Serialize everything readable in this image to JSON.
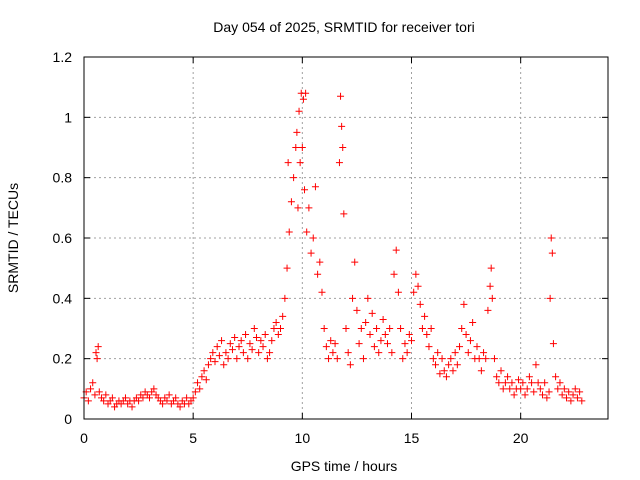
{
  "chart_data": {
    "type": "scatter",
    "title": "Day 054 of 2025, SRMTID for receiver tori",
    "xlabel": "GPS time / hours",
    "ylabel": "SRMTID / TECUs",
    "xlim": [
      0,
      24
    ],
    "ylim": [
      0,
      1.2
    ],
    "xticks": [
      0,
      5,
      10,
      15,
      20
    ],
    "xtick_labels": [
      "0",
      "5",
      "10",
      "15",
      "20"
    ],
    "yticks": [
      0,
      0.2,
      0.4,
      0.6,
      0.8,
      1.0,
      1.2
    ],
    "ytick_labels": [
      "0",
      "0.2",
      "0.4",
      "0.6",
      "0.8",
      "1",
      "1.2"
    ],
    "grid": true,
    "marker": "+",
    "series": [
      {
        "name": "SRMTID",
        "color": "#ff0000",
        "points": [
          [
            0.0,
            0.07
          ],
          [
            0.1,
            0.09
          ],
          [
            0.2,
            0.06
          ],
          [
            0.3,
            0.1
          ],
          [
            0.4,
            0.12
          ],
          [
            0.5,
            0.08
          ],
          [
            0.55,
            0.22
          ],
          [
            0.6,
            0.2
          ],
          [
            0.65,
            0.24
          ],
          [
            0.7,
            0.09
          ],
          [
            0.8,
            0.07
          ],
          [
            0.9,
            0.06
          ],
          [
            1.0,
            0.08
          ],
          [
            1.1,
            0.05
          ],
          [
            1.2,
            0.06
          ],
          [
            1.3,
            0.07
          ],
          [
            1.4,
            0.04
          ],
          [
            1.5,
            0.05
          ],
          [
            1.6,
            0.06
          ],
          [
            1.7,
            0.05
          ],
          [
            1.8,
            0.06
          ],
          [
            1.9,
            0.07
          ],
          [
            2.0,
            0.05
          ],
          [
            2.1,
            0.06
          ],
          [
            2.2,
            0.04
          ],
          [
            2.3,
            0.06
          ],
          [
            2.4,
            0.07
          ],
          [
            2.5,
            0.06
          ],
          [
            2.6,
            0.08
          ],
          [
            2.7,
            0.07
          ],
          [
            2.8,
            0.09
          ],
          [
            2.9,
            0.08
          ],
          [
            3.0,
            0.07
          ],
          [
            3.1,
            0.09
          ],
          [
            3.2,
            0.1
          ],
          [
            3.3,
            0.08
          ],
          [
            3.4,
            0.07
          ],
          [
            3.5,
            0.06
          ],
          [
            3.6,
            0.05
          ],
          [
            3.7,
            0.07
          ],
          [
            3.8,
            0.06
          ],
          [
            3.9,
            0.08
          ],
          [
            4.0,
            0.05
          ],
          [
            4.1,
            0.06
          ],
          [
            4.2,
            0.07
          ],
          [
            4.3,
            0.05
          ],
          [
            4.4,
            0.04
          ],
          [
            4.5,
            0.06
          ],
          [
            4.6,
            0.05
          ],
          [
            4.7,
            0.07
          ],
          [
            4.8,
            0.05
          ],
          [
            4.9,
            0.06
          ],
          [
            5.0,
            0.07
          ],
          [
            5.1,
            0.09
          ],
          [
            5.2,
            0.12
          ],
          [
            5.3,
            0.1
          ],
          [
            5.4,
            0.14
          ],
          [
            5.5,
            0.16
          ],
          [
            5.6,
            0.13
          ],
          [
            5.7,
            0.18
          ],
          [
            5.8,
            0.2
          ],
          [
            5.9,
            0.22
          ],
          [
            6.0,
            0.19
          ],
          [
            6.1,
            0.24
          ],
          [
            6.2,
            0.21
          ],
          [
            6.3,
            0.26
          ],
          [
            6.4,
            0.18
          ],
          [
            6.5,
            0.22
          ],
          [
            6.6,
            0.2
          ],
          [
            6.7,
            0.25
          ],
          [
            6.8,
            0.23
          ],
          [
            6.9,
            0.27
          ],
          [
            7.0,
            0.2
          ],
          [
            7.1,
            0.24
          ],
          [
            7.2,
            0.26
          ],
          [
            7.3,
            0.22
          ],
          [
            7.4,
            0.28
          ],
          [
            7.5,
            0.2
          ],
          [
            7.6,
            0.25
          ],
          [
            7.7,
            0.23
          ],
          [
            7.8,
            0.3
          ],
          [
            7.9,
            0.27
          ],
          [
            8.0,
            0.22
          ],
          [
            8.1,
            0.26
          ],
          [
            8.2,
            0.24
          ],
          [
            8.3,
            0.28
          ],
          [
            8.4,
            0.2
          ],
          [
            8.5,
            0.22
          ],
          [
            8.6,
            0.26
          ],
          [
            8.7,
            0.3
          ],
          [
            8.8,
            0.32
          ],
          [
            8.9,
            0.28
          ],
          [
            9.0,
            0.3
          ],
          [
            9.1,
            0.34
          ],
          [
            9.2,
            0.4
          ],
          [
            9.3,
            0.5
          ],
          [
            9.35,
            0.85
          ],
          [
            9.4,
            0.62
          ],
          [
            9.5,
            0.72
          ],
          [
            9.6,
            0.8
          ],
          [
            9.7,
            0.9
          ],
          [
            9.75,
            0.95
          ],
          [
            9.8,
            0.7
          ],
          [
            9.85,
            1.02
          ],
          [
            9.9,
            0.85
          ],
          [
            9.95,
            1.08
          ],
          [
            10.0,
            0.9
          ],
          [
            10.05,
            1.06
          ],
          [
            10.1,
            0.76
          ],
          [
            10.15,
            1.08
          ],
          [
            10.2,
            0.62
          ],
          [
            10.3,
            0.7
          ],
          [
            10.4,
            0.55
          ],
          [
            10.5,
            0.6
          ],
          [
            10.6,
            0.77
          ],
          [
            10.7,
            0.48
          ],
          [
            10.8,
            0.52
          ],
          [
            10.9,
            0.42
          ],
          [
            11.0,
            0.3
          ],
          [
            11.1,
            0.24
          ],
          [
            11.2,
            0.2
          ],
          [
            11.3,
            0.26
          ],
          [
            11.4,
            0.22
          ],
          [
            11.5,
            0.25
          ],
          [
            11.6,
            0.2
          ],
          [
            11.7,
            0.85
          ],
          [
            11.75,
            1.07
          ],
          [
            11.8,
            0.97
          ],
          [
            11.85,
            0.9
          ],
          [
            11.9,
            0.68
          ],
          [
            12.0,
            0.3
          ],
          [
            12.1,
            0.22
          ],
          [
            12.2,
            0.18
          ],
          [
            12.3,
            0.4
          ],
          [
            12.4,
            0.52
          ],
          [
            12.5,
            0.36
          ],
          [
            12.6,
            0.25
          ],
          [
            12.7,
            0.3
          ],
          [
            12.8,
            0.2
          ],
          [
            12.9,
            0.32
          ],
          [
            13.0,
            0.4
          ],
          [
            13.1,
            0.28
          ],
          [
            13.2,
            0.35
          ],
          [
            13.3,
            0.24
          ],
          [
            13.4,
            0.3
          ],
          [
            13.5,
            0.22
          ],
          [
            13.6,
            0.26
          ],
          [
            13.7,
            0.33
          ],
          [
            13.8,
            0.28
          ],
          [
            13.9,
            0.25
          ],
          [
            14.0,
            0.3
          ],
          [
            14.1,
            0.22
          ],
          [
            14.2,
            0.48
          ],
          [
            14.3,
            0.56
          ],
          [
            14.4,
            0.42
          ],
          [
            14.5,
            0.3
          ],
          [
            14.6,
            0.2
          ],
          [
            14.7,
            0.25
          ],
          [
            14.8,
            0.22
          ],
          [
            14.9,
            0.28
          ],
          [
            15.0,
            0.26
          ],
          [
            15.1,
            0.42
          ],
          [
            15.2,
            0.48
          ],
          [
            15.3,
            0.44
          ],
          [
            15.4,
            0.38
          ],
          [
            15.5,
            0.3
          ],
          [
            15.6,
            0.34
          ],
          [
            15.7,
            0.28
          ],
          [
            15.8,
            0.24
          ],
          [
            15.9,
            0.3
          ],
          [
            16.0,
            0.2
          ],
          [
            16.1,
            0.18
          ],
          [
            16.2,
            0.22
          ],
          [
            16.3,
            0.15
          ],
          [
            16.4,
            0.2
          ],
          [
            16.5,
            0.16
          ],
          [
            16.6,
            0.14
          ],
          [
            16.7,
            0.18
          ],
          [
            16.8,
            0.2
          ],
          [
            16.9,
            0.16
          ],
          [
            17.0,
            0.22
          ],
          [
            17.1,
            0.18
          ],
          [
            17.2,
            0.24
          ],
          [
            17.3,
            0.3
          ],
          [
            17.4,
            0.38
          ],
          [
            17.5,
            0.28
          ],
          [
            17.6,
            0.22
          ],
          [
            17.7,
            0.26
          ],
          [
            17.8,
            0.32
          ],
          [
            17.9,
            0.2
          ],
          [
            18.0,
            0.24
          ],
          [
            18.1,
            0.2
          ],
          [
            18.2,
            0.16
          ],
          [
            18.3,
            0.22
          ],
          [
            18.4,
            0.2
          ],
          [
            18.5,
            0.36
          ],
          [
            18.6,
            0.44
          ],
          [
            18.65,
            0.5
          ],
          [
            18.7,
            0.4
          ],
          [
            18.8,
            0.2
          ],
          [
            18.9,
            0.14
          ],
          [
            19.0,
            0.12
          ],
          [
            19.1,
            0.16
          ],
          [
            19.2,
            0.1
          ],
          [
            19.3,
            0.12
          ],
          [
            19.4,
            0.14
          ],
          [
            19.5,
            0.1
          ],
          [
            19.6,
            0.12
          ],
          [
            19.7,
            0.08
          ],
          [
            19.8,
            0.1
          ],
          [
            19.9,
            0.13
          ],
          [
            20.0,
            0.1
          ],
          [
            20.1,
            0.12
          ],
          [
            20.2,
            0.08
          ],
          [
            20.3,
            0.1
          ],
          [
            20.4,
            0.14
          ],
          [
            20.5,
            0.12
          ],
          [
            20.6,
            0.09
          ],
          [
            20.7,
            0.18
          ],
          [
            20.8,
            0.12
          ],
          [
            20.9,
            0.1
          ],
          [
            21.0,
            0.08
          ],
          [
            21.1,
            0.12
          ],
          [
            21.2,
            0.07
          ],
          [
            21.3,
            0.09
          ],
          [
            21.35,
            0.4
          ],
          [
            21.4,
            0.6
          ],
          [
            21.45,
            0.55
          ],
          [
            21.5,
            0.25
          ],
          [
            21.6,
            0.14
          ],
          [
            21.7,
            0.1
          ],
          [
            21.8,
            0.12
          ],
          [
            21.9,
            0.08
          ],
          [
            22.0,
            0.1
          ],
          [
            22.1,
            0.07
          ],
          [
            22.2,
            0.09
          ],
          [
            22.3,
            0.06
          ],
          [
            22.4,
            0.08
          ],
          [
            22.5,
            0.1
          ],
          [
            22.6,
            0.07
          ],
          [
            22.7,
            0.09
          ],
          [
            22.8,
            0.06
          ]
        ]
      }
    ]
  }
}
